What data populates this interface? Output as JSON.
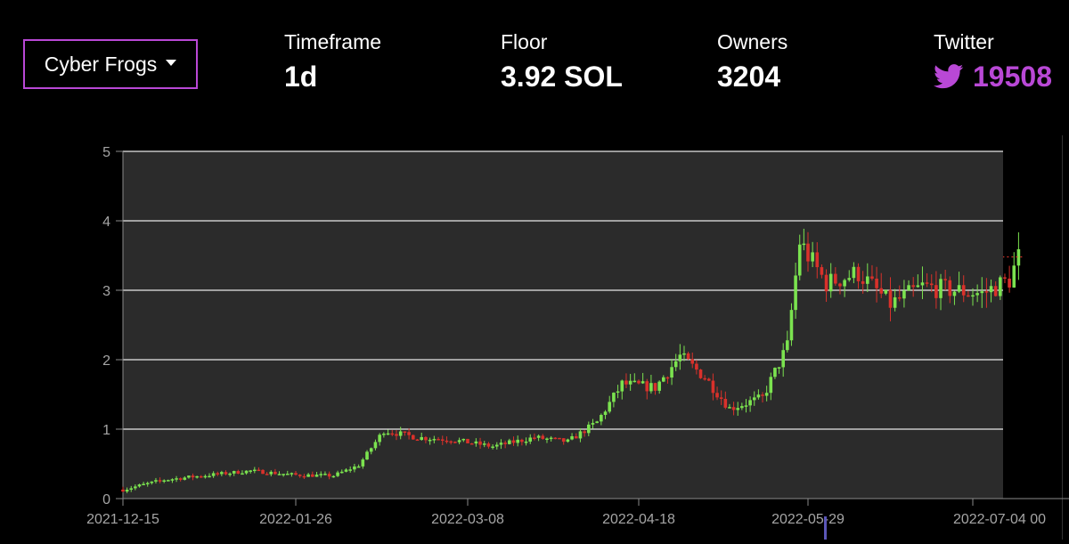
{
  "collection_select": {
    "label": "Cyber Frogs"
  },
  "stats": {
    "timeframe": {
      "label": "Timeframe",
      "value": "1d"
    },
    "floor": {
      "label": "Floor",
      "value": "3.92 SOL"
    },
    "owners": {
      "label": "Owners",
      "value": "3204"
    },
    "twitter": {
      "label": "Twitter",
      "value": "19508",
      "icon": "twitter-bird-icon"
    }
  },
  "colors": {
    "accent": "#b948d6",
    "up": "#7be34f",
    "down": "#d9312b",
    "plot_bg": "#2b2b2b",
    "last_price_line": "#d9312b"
  },
  "chart_data": {
    "type": "candlestick",
    "x_tick_labels": [
      "2021-12-15",
      "2022-01-26",
      "2022-03-08",
      "2022-04-18",
      "2022-05-29",
      "2022-07-04 00"
    ],
    "y_ticks": [
      0,
      1,
      2,
      3,
      4,
      5
    ],
    "ylim": [
      0,
      5
    ],
    "grid": true,
    "last_price": 3.48,
    "series": [
      {
        "x": "2021-12-15",
        "y": 0.13
      },
      {
        "x": "2021-12-25",
        "y": 0.27
      },
      {
        "x": "2022-01-05",
        "y": 0.34
      },
      {
        "x": "2022-01-15",
        "y": 0.4
      },
      {
        "x": "2022-01-26",
        "y": 0.34
      },
      {
        "x": "2022-02-04",
        "y": 0.33
      },
      {
        "x": "2022-02-10",
        "y": 0.48
      },
      {
        "x": "2022-02-16",
        "y": 0.98
      },
      {
        "x": "2022-02-24",
        "y": 0.88
      },
      {
        "x": "2022-03-04",
        "y": 0.85
      },
      {
        "x": "2022-03-14",
        "y": 0.75
      },
      {
        "x": "2022-03-24",
        "y": 0.88
      },
      {
        "x": "2022-04-01",
        "y": 0.82
      },
      {
        "x": "2022-04-08",
        "y": 1.1
      },
      {
        "x": "2022-04-14",
        "y": 1.65
      },
      {
        "x": "2022-04-22",
        "y": 1.6
      },
      {
        "x": "2022-04-28",
        "y": 2.05
      },
      {
        "x": "2022-05-04",
        "y": 1.75
      },
      {
        "x": "2022-05-10",
        "y": 1.3
      },
      {
        "x": "2022-05-18",
        "y": 1.45
      },
      {
        "x": "2022-05-24",
        "y": 2.2
      },
      {
        "x": "2022-05-27",
        "y": 3.7
      },
      {
        "x": "2022-06-02",
        "y": 3.1
      },
      {
        "x": "2022-06-09",
        "y": 3.25
      },
      {
        "x": "2022-06-16",
        "y": 2.8
      },
      {
        "x": "2022-06-23",
        "y": 3.05
      },
      {
        "x": "2022-06-30",
        "y": 3.0
      },
      {
        "x": "2022-07-06",
        "y": 2.95
      },
      {
        "x": "2022-07-12",
        "y": 3.15
      },
      {
        "x": "2022-07-14",
        "y": 3.48
      }
    ]
  }
}
